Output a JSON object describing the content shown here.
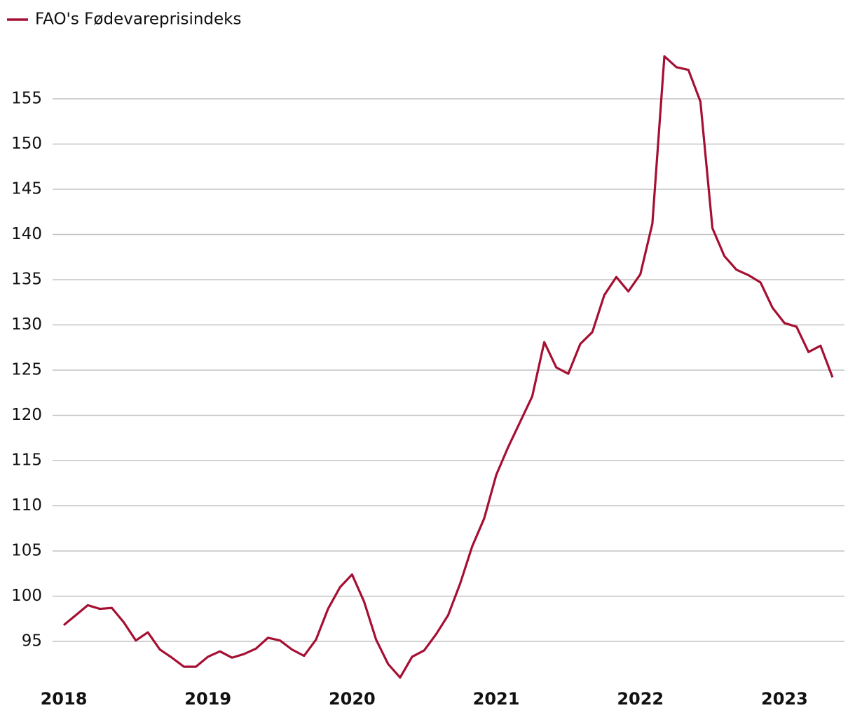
{
  "chart_data": {
    "type": "line",
    "categories": [
      "2018",
      null,
      null,
      null,
      null,
      null,
      null,
      null,
      null,
      null,
      null,
      null,
      "2019",
      null,
      null,
      null,
      null,
      null,
      null,
      null,
      null,
      null,
      null,
      null,
      "2020",
      null,
      null,
      null,
      null,
      null,
      null,
      null,
      null,
      null,
      null,
      null,
      "2021",
      null,
      null,
      null,
      null,
      null,
      null,
      null,
      null,
      null,
      null,
      null,
      "2022",
      null,
      null,
      null,
      null,
      null,
      null,
      null,
      null,
      null,
      null,
      null,
      "2023",
      null,
      null,
      null,
      null
    ],
    "series": [
      {
        "name": "FAO's Fødevareprisindeks",
        "color": "#a50f32",
        "values": [
          96.8,
          97.9,
          99.0,
          98.6,
          98.7,
          97.1,
          95.1,
          96.0,
          94.1,
          93.2,
          92.2,
          92.2,
          93.3,
          93.9,
          93.2,
          93.6,
          94.2,
          95.4,
          95.1,
          94.1,
          93.4,
          95.2,
          98.6,
          101.0,
          102.4,
          99.4,
          95.2,
          92.5,
          91.0,
          93.3,
          94.0,
          95.8,
          97.9,
          101.4,
          105.5,
          108.6,
          113.4,
          116.5,
          119.3,
          122.1,
          128.1,
          125.3,
          124.6,
          127.9,
          129.2,
          133.3,
          135.3,
          133.7,
          135.6,
          141.2,
          159.7,
          158.5,
          158.2,
          154.7,
          140.7,
          137.6,
          136.1,
          135.5,
          134.7,
          131.9,
          130.2,
          129.8,
          127.0,
          127.7,
          124.2
        ]
      }
    ],
    "ylim": [
      91,
      160
    ],
    "yticks": [
      95,
      100,
      105,
      110,
      115,
      120,
      125,
      130,
      135,
      140,
      145,
      150,
      155
    ],
    "grid": true,
    "legend": "top-left"
  }
}
